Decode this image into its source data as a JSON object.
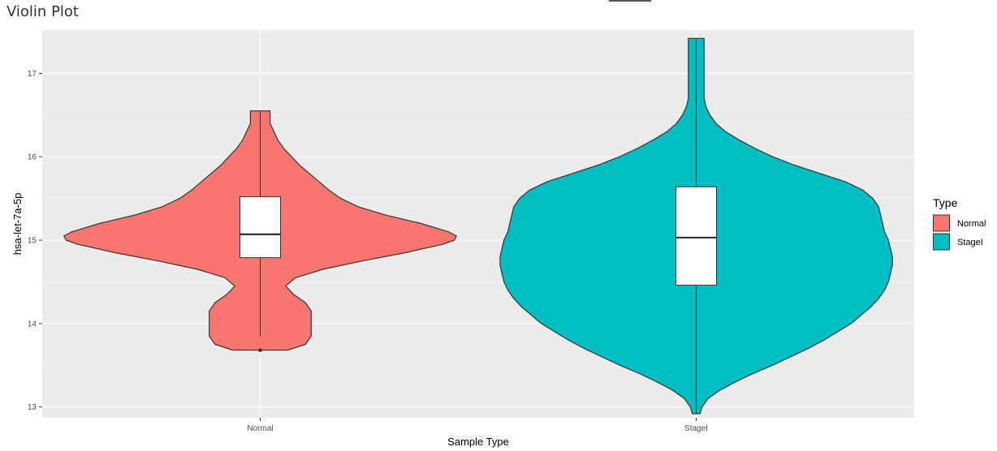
{
  "page": {
    "title": "Violin Plot"
  },
  "chart_data": {
    "type": "violin",
    "title": "",
    "xlabel": "Sample Type",
    "ylabel": "hsa-let-7a-5p",
    "categories": [
      "Normal",
      "StageI"
    ],
    "ylim": [
      12.87,
      17.52
    ],
    "yticks": [
      13,
      14,
      15,
      16,
      17
    ],
    "grid": true,
    "legend": {
      "title": "Type",
      "position": "right",
      "entries": [
        {
          "label": "Normal",
          "color": "#F8766D"
        },
        {
          "label": "StageI",
          "color": "#00BFC4"
        }
      ]
    },
    "series": [
      {
        "name": "Normal",
        "color": "#F8766D",
        "box": {
          "q1": 14.79,
          "median": 15.07,
          "q3": 15.52,
          "lower_whisker": 13.85,
          "upper_whisker": 16.55
        },
        "outliers": [
          13.68
        ],
        "density": [
          [
            13.68,
            0.14
          ],
          [
            13.75,
            0.23
          ],
          [
            13.85,
            0.26
          ],
          [
            13.95,
            0.26
          ],
          [
            14.05,
            0.26
          ],
          [
            14.15,
            0.26
          ],
          [
            14.25,
            0.23
          ],
          [
            14.35,
            0.17
          ],
          [
            14.45,
            0.13
          ],
          [
            14.55,
            0.18
          ],
          [
            14.65,
            0.32
          ],
          [
            14.75,
            0.52
          ],
          [
            14.85,
            0.74
          ],
          [
            14.95,
            0.93
          ],
          [
            15.0,
            0.99
          ],
          [
            15.05,
            1.0
          ],
          [
            15.1,
            0.96
          ],
          [
            15.2,
            0.82
          ],
          [
            15.3,
            0.64
          ],
          [
            15.4,
            0.5
          ],
          [
            15.5,
            0.41
          ],
          [
            15.6,
            0.35
          ],
          [
            15.7,
            0.3
          ],
          [
            15.8,
            0.25
          ],
          [
            15.9,
            0.2
          ],
          [
            16.0,
            0.16
          ],
          [
            16.1,
            0.12
          ],
          [
            16.2,
            0.09
          ],
          [
            16.3,
            0.07
          ],
          [
            16.4,
            0.05
          ],
          [
            16.5,
            0.05
          ],
          [
            16.55,
            0.05
          ]
        ]
      },
      {
        "name": "StageI",
        "color": "#00BFC4",
        "box": {
          "q1": 14.46,
          "median": 15.03,
          "q3": 15.64,
          "lower_whisker": 12.92,
          "upper_whisker": 17.42
        },
        "outliers": [],
        "density": [
          [
            12.92,
            0.02
          ],
          [
            13.0,
            0.03
          ],
          [
            13.1,
            0.06
          ],
          [
            13.2,
            0.12
          ],
          [
            13.3,
            0.2
          ],
          [
            13.4,
            0.29
          ],
          [
            13.5,
            0.39
          ],
          [
            13.6,
            0.48
          ],
          [
            13.7,
            0.57
          ],
          [
            13.8,
            0.65
          ],
          [
            13.9,
            0.72
          ],
          [
            14.0,
            0.79
          ],
          [
            14.1,
            0.84
          ],
          [
            14.2,
            0.89
          ],
          [
            14.3,
            0.93
          ],
          [
            14.4,
            0.96
          ],
          [
            14.5,
            0.98
          ],
          [
            14.6,
            0.99
          ],
          [
            14.7,
            1.0
          ],
          [
            14.8,
            1.0
          ],
          [
            14.9,
            0.99
          ],
          [
            15.0,
            0.98
          ],
          [
            15.1,
            0.96
          ],
          [
            15.2,
            0.95
          ],
          [
            15.3,
            0.94
          ],
          [
            15.4,
            0.93
          ],
          [
            15.5,
            0.9
          ],
          [
            15.6,
            0.85
          ],
          [
            15.7,
            0.76
          ],
          [
            15.8,
            0.63
          ],
          [
            15.9,
            0.5
          ],
          [
            16.0,
            0.39
          ],
          [
            16.1,
            0.3
          ],
          [
            16.2,
            0.22
          ],
          [
            16.3,
            0.15
          ],
          [
            16.4,
            0.1
          ],
          [
            16.5,
            0.07
          ],
          [
            16.6,
            0.05
          ],
          [
            16.7,
            0.04
          ],
          [
            16.8,
            0.04
          ],
          [
            16.9,
            0.04
          ],
          [
            17.0,
            0.04
          ],
          [
            17.1,
            0.04
          ],
          [
            17.2,
            0.04
          ],
          [
            17.3,
            0.04
          ],
          [
            17.42,
            0.04
          ]
        ]
      }
    ]
  }
}
